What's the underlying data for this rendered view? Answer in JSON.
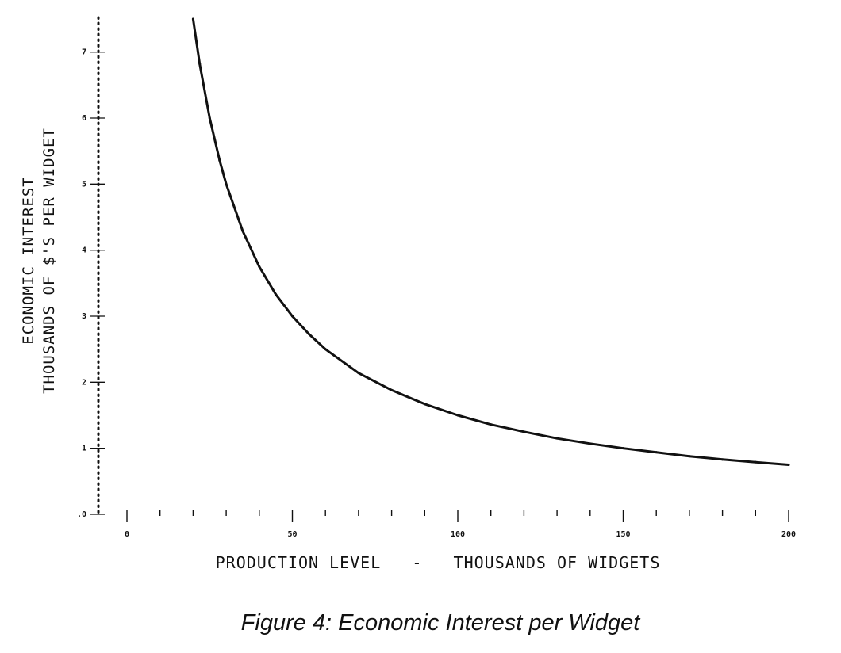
{
  "chart_data": {
    "type": "line",
    "title": "",
    "xlabel": "PRODUCTION LEVEL   -   THOUSANDS OF WIDGETS",
    "ylabel": [
      "ECONOMIC INTEREST",
      "THOUSANDS OF $'S PER WIDGET"
    ],
    "caption": "Figure 4: Economic Interest per Widget",
    "xlim": [
      0,
      200
    ],
    "ylim": [
      0,
      7.5
    ],
    "x_ticks": [
      {
        "value": 0,
        "label": "0"
      },
      {
        "value": 50,
        "label": "50"
      },
      {
        "value": 100,
        "label": "100"
      },
      {
        "value": 150,
        "label": "150"
      },
      {
        "value": 200,
        "label": "200"
      }
    ],
    "x_minor_step": 10,
    "y_ticks": [
      {
        "value": 0,
        "label": ".0"
      },
      {
        "value": 1,
        "label": "1"
      },
      {
        "value": 2,
        "label": "2"
      },
      {
        "value": 3,
        "label": "3"
      },
      {
        "value": 4,
        "label": "4"
      },
      {
        "value": 5,
        "label": "5"
      },
      {
        "value": 6,
        "label": "6"
      },
      {
        "value": 7,
        "label": "7"
      }
    ],
    "grid": false,
    "series": [
      {
        "x": [
          20,
          22,
          25,
          28,
          30,
          35,
          40,
          45,
          50,
          55,
          60,
          70,
          80,
          90,
          100,
          110,
          120,
          130,
          140,
          150,
          160,
          170,
          180,
          190,
          200
        ],
        "y": [
          7.5,
          6.82,
          6.0,
          5.36,
          5.0,
          4.29,
          3.75,
          3.33,
          3.0,
          2.73,
          2.5,
          2.14,
          1.88,
          1.67,
          1.5,
          1.36,
          1.25,
          1.15,
          1.07,
          1.0,
          0.94,
          0.88,
          0.83,
          0.79,
          0.75
        ]
      }
    ]
  }
}
